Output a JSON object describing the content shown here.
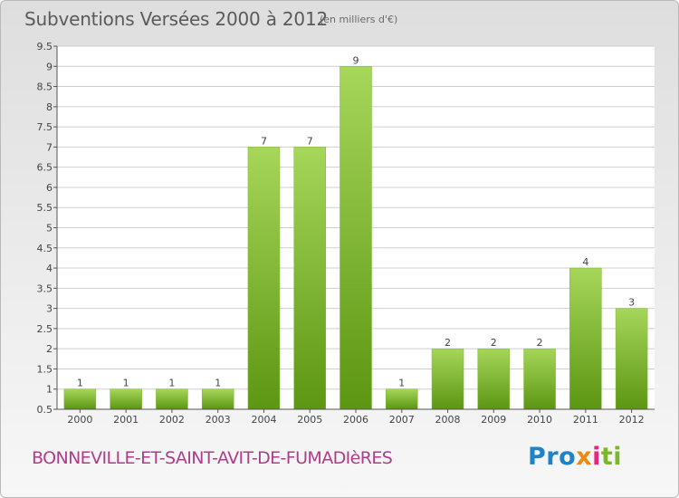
{
  "header": {
    "title": "Subventions Versées 2000 à 2012",
    "unit": "(en milliers d'€)"
  },
  "footer": {
    "commune": "BONNEVILLE-ET-SAINT-AVIT-DE-FUMADIèRES",
    "logo": {
      "parts": [
        {
          "text": "Pro",
          "color": "#1f83c8"
        },
        {
          "text": "x",
          "color": "#ef8a11"
        },
        {
          "text": "i",
          "color": "#e5267a"
        },
        {
          "text": "ti",
          "color": "#7ab828"
        }
      ]
    }
  },
  "colors": {
    "bar_light": "#a6d65a",
    "bar_dark": "#5c9612",
    "grid": "#cfcfcf",
    "axis": "#555555",
    "text": "#444444"
  },
  "chart_data": {
    "type": "bar",
    "categories": [
      "2000",
      "2001",
      "2002",
      "2003",
      "2004",
      "2005",
      "2006",
      "2007",
      "2008",
      "2009",
      "2010",
      "2011",
      "2012"
    ],
    "values": [
      1,
      1,
      1,
      1,
      7,
      7,
      9,
      1,
      2,
      2,
      2,
      4,
      3
    ],
    "data_labels": [
      "1",
      "1",
      "1",
      "1",
      "7",
      "7",
      "9",
      "1",
      "2",
      "2",
      "2",
      "4",
      "3"
    ],
    "ylim": [
      0.5,
      9.5
    ],
    "yticks": [
      0.5,
      1,
      1.5,
      2,
      2.5,
      3,
      3.5,
      4,
      4.5,
      5,
      5.5,
      6,
      6.5,
      7,
      7.5,
      8,
      8.5,
      9,
      9.5
    ],
    "ytick_labels": [
      "0.5",
      "1",
      "1.5",
      "2",
      "2.5",
      "3",
      "3.5",
      "4",
      "4.5",
      "5",
      "5.5",
      "6",
      "6.5",
      "7",
      "7.5",
      "8",
      "8.5",
      "9",
      "9.5"
    ],
    "grid": true,
    "title": "Subventions Versées 2000 à 2012",
    "xlabel": "",
    "ylabel": ""
  }
}
